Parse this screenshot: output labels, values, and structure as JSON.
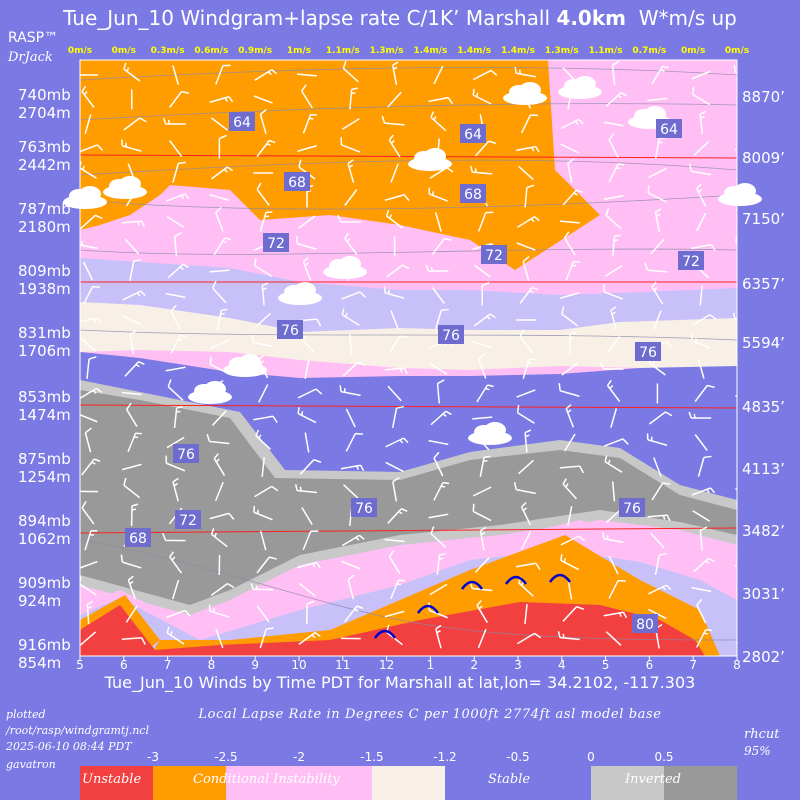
{
  "title": {
    "main": "Tue_Jun_10 Windgram+lapse rate C/1K’  Marshall",
    "height": "4.0km",
    "unit": "W*m/s up"
  },
  "brand": {
    "name": "RASP™",
    "author": "DrJack"
  },
  "colors": {
    "background": "#7b79e4",
    "unstable": "#f24040",
    "conditional": "#ff9c00",
    "instability": "#ffbff5",
    "weak_stable": "#f8f0e6",
    "stable": "#7b79e4",
    "light_stable": "#c8c0f8",
    "inverted_light": "#c8c8c8",
    "inverted": "#999999",
    "thermal_top": "#ffff00"
  },
  "chart_data": {
    "type": "windgram",
    "title": "Tue_Jun_10 Windgram+lapse rate C/1K’  Marshall 4.0km  W*m/s up",
    "xlabel": "Tue_Jun_10 Winds by Time PDT for Marshall at lat,lon= 34.2102, -117.303",
    "x_ticks": [
      "5",
      "6",
      "7",
      "8",
      "9",
      "10",
      "11",
      "12",
      "1",
      "2",
      "3",
      "4",
      "5",
      "6",
      "7",
      "8"
    ],
    "updraft_top": [
      "0m/s",
      "0m/s",
      "0.3m/s",
      "0.6m/s",
      "0.9m/s",
      "1m/s",
      "1.1m/s",
      "1.3m/s",
      "1.4m/s",
      "1.4m/s",
      "1.4m/s",
      "1.3m/s",
      "1.1m/s",
      "0.7m/s",
      "0m/s",
      "0m/s"
    ],
    "left_axis": [
      {
        "mb": "740mb",
        "m": "2704m"
      },
      {
        "mb": "763mb",
        "m": "2442m"
      },
      {
        "mb": "787mb",
        "m": "2180m"
      },
      {
        "mb": "809mb",
        "m": "1938m"
      },
      {
        "mb": "831mb",
        "m": "1706m"
      },
      {
        "mb": "853mb",
        "m": "1474m"
      },
      {
        "mb": "875mb",
        "m": "1254m"
      },
      {
        "mb": "894mb",
        "m": "1062m"
      },
      {
        "mb": "909mb",
        "m": "924m"
      },
      {
        "mb": "916mb",
        "m": "854m"
      }
    ],
    "right_axis": [
      "8870’",
      "8009’",
      "7150’",
      "6357’",
      "5594’",
      "4835’",
      "4113’",
      "3482’",
      "3031’",
      "2802’"
    ],
    "contour_labels": [
      "64",
      "64",
      "64",
      "68",
      "68",
      "72",
      "72",
      "72",
      "76",
      "76",
      "76",
      "76",
      "76",
      "76",
      "72",
      "68",
      "80"
    ],
    "grid": true
  },
  "footer": {
    "plotted": "plotted",
    "path": "/root/rasp/windgramtj.ncl",
    "timestamp": "2025-06-10 08:44 PDT",
    "user": "gavatron",
    "lapse_title": "Local Lapse Rate in Degrees C per 1000ft  2774ft asl model base",
    "rhcut": "rhcut",
    "rhcut_value": "95%",
    "legend_values": [
      "-3",
      "-2.5",
      "-2",
      "-1.5",
      "-1.2",
      "-0.5",
      "0",
      "0.5"
    ],
    "legend_labels": [
      "Unstable",
      "Conditional Instability",
      "Stable",
      "Inverted"
    ]
  }
}
